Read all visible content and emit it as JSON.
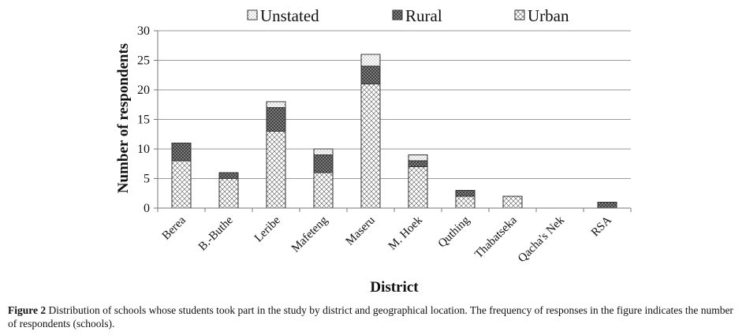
{
  "chart_data": {
    "type": "bar",
    "stacked": true,
    "categories": [
      "Berea",
      "B.-Buthe",
      "Leribe",
      "Mafeteng",
      "Maseru",
      "M. Hoek",
      "Quthing",
      "Thabatseka",
      "Qacha's Nek",
      "RSA"
    ],
    "series": [
      {
        "name": "Urban",
        "values": [
          8,
          5,
          13,
          6,
          21,
          7,
          2,
          2,
          0,
          0
        ]
      },
      {
        "name": "Rural",
        "values": [
          3,
          1,
          4,
          3,
          3,
          1,
          1,
          0,
          0,
          1
        ]
      },
      {
        "name": "Unstated",
        "values": [
          0,
          0,
          1,
          1,
          2,
          1,
          0,
          0,
          0,
          0
        ]
      }
    ],
    "legend_order": [
      "Unstated",
      "Rural",
      "Urban"
    ],
    "legend_position": "top",
    "xlabel": "District",
    "ylabel": "Number of respondents",
    "ylim": [
      0,
      30
    ],
    "yticks": [
      0,
      5,
      10,
      15,
      20,
      25,
      30
    ],
    "grid": true
  },
  "caption": {
    "label": "Figure 2",
    "text": " Distribution of schools whose students took part in the study by district and geographical location. The frequency of responses in the figure indicates the number of respondents (schools)."
  }
}
